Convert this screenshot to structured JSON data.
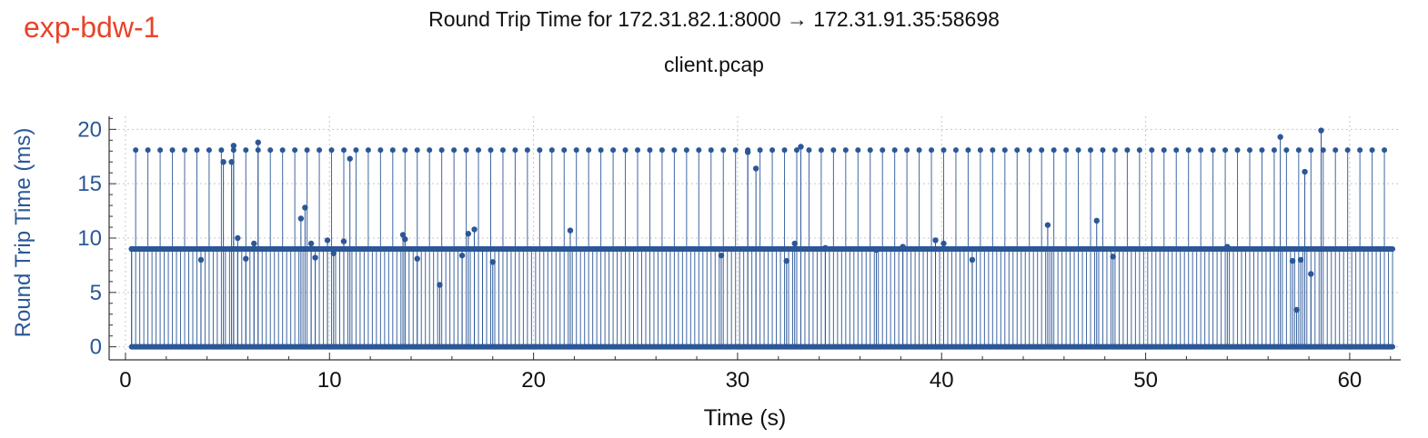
{
  "tag_label": "exp-bdw-1",
  "colors": {
    "tag": "#e8432a",
    "series": "#2b5797",
    "axis": "#333333",
    "grid": "#c8c8c8",
    "ylabel": "#2b5797"
  },
  "chart_data": {
    "type": "scatter",
    "title": "Round Trip Time for 172.31.82.1:8000 → 172.31.91.35:58698",
    "subtitle": "client.pcap",
    "xlabel": "Time (s)",
    "ylabel": "Round Trip Time (ms)",
    "xlim": [
      -0.8,
      62.5
    ],
    "ylim": [
      -1.2,
      21.2
    ],
    "xticks": [
      0,
      10,
      20,
      30,
      40,
      50,
      60
    ],
    "yticks": [
      0,
      5,
      10,
      15,
      20
    ],
    "grid": true,
    "marker_style": "stem",
    "series": [
      {
        "description": "Periodic RTT samples, about every 0.1 s from 0.3 s to 62.1 s, alternating among a low level, a middle level and a high level",
        "t_start": 0.3,
        "t_end": 62.1,
        "period": 0.1,
        "levels": [
          0.0,
          9.0,
          18.1
        ]
      },
      {
        "description": "Outlier samples",
        "x": [
          0.3,
          3.7,
          4.8,
          5.2,
          5.3,
          5.5,
          5.9,
          6.3,
          6.5,
          8.6,
          8.8,
          9.1,
          9.3,
          9.9,
          10.2,
          10.7,
          11.0,
          13.6,
          13.7,
          14.3,
          15.4,
          16.5,
          16.8,
          17.1,
          17.5,
          18.0,
          21.8,
          29.2,
          30.5,
          30.9,
          32.4,
          32.8,
          33.1,
          34.3,
          36.8,
          38.1,
          39.7,
          40.1,
          41.5,
          45.2,
          45.4,
          47.6,
          48.4,
          54.0,
          56.6,
          57.2,
          57.4,
          57.6,
          57.8,
          58.1,
          58.6
        ],
        "y": [
          9.0,
          8.0,
          17.0,
          17.0,
          18.5,
          10.0,
          8.1,
          9.5,
          18.8,
          11.8,
          12.8,
          9.5,
          8.2,
          9.8,
          8.6,
          9.7,
          17.3,
          10.3,
          9.9,
          8.1,
          5.7,
          8.4,
          10.4,
          10.8,
          9.0,
          7.8,
          10.7,
          8.4,
          17.9,
          16.4,
          7.9,
          9.5,
          18.4,
          9.1,
          8.9,
          9.2,
          9.8,
          9.5,
          8.0,
          11.2,
          9.0,
          11.6,
          8.3,
          9.2,
          19.3,
          7.9,
          3.4,
          8.0,
          16.1,
          6.7,
          19.9
        ]
      }
    ]
  }
}
